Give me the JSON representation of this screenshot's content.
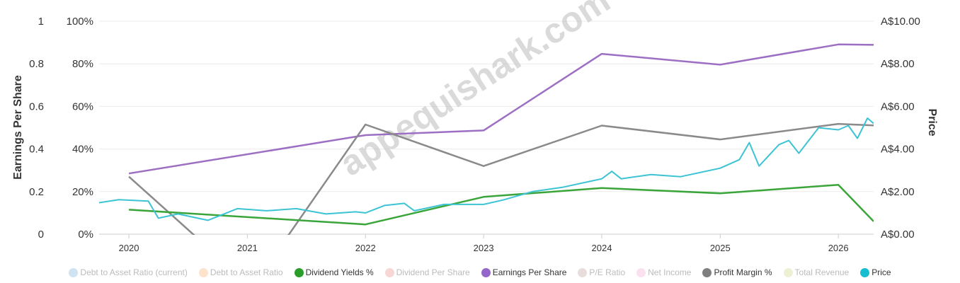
{
  "chart_data": {
    "type": "line",
    "watermark": "appequishark.com",
    "axes": {
      "left_eps": {
        "title": "Earnings Per Share",
        "ticks": [
          "0",
          "0.2",
          "0.4",
          "0.6",
          "0.8",
          "1"
        ],
        "range": [
          0,
          1
        ]
      },
      "left_pct": {
        "ticks": [
          "0%",
          "20%",
          "40%",
          "60%",
          "80%",
          "100%"
        ],
        "range": [
          0,
          100
        ]
      },
      "right_price": {
        "title": "Price",
        "ticks": [
          "A$0.00",
          "A$2.00",
          "A$4.00",
          "A$6.00",
          "A$8.00",
          "A$10.00"
        ],
        "range": [
          0,
          10
        ]
      },
      "x": {
        "ticks": [
          "2020",
          "2021",
          "2022",
          "2023",
          "2024",
          "2025",
          "2026"
        ],
        "range": [
          "2019-10-01",
          "2026-04-20"
        ]
      }
    },
    "series": [
      {
        "name": "Earnings Per Share",
        "color": "#9c6fc4",
        "axis": "left_eps",
        "points": [
          [
            "2020-01-01",
            0.285
          ],
          [
            "2022-01-01",
            0.465
          ],
          [
            "2023-01-01",
            0.487
          ],
          [
            "2024-01-01",
            0.847
          ],
          [
            "2025-01-01",
            0.796
          ],
          [
            "2026-01-01",
            0.891
          ],
          [
            "2026-04-20",
            0.889
          ]
        ]
      },
      {
        "name": "Profit Margin %",
        "color": "#8a8a8a",
        "axis": "left_pct",
        "points": [
          [
            "2020-01-01",
            27
          ],
          [
            "2020-08-01",
            -2
          ],
          [
            "2021-05-01",
            -2
          ],
          [
            "2022-01-01",
            51.5
          ],
          [
            "2023-01-01",
            32
          ],
          [
            "2024-01-01",
            51
          ],
          [
            "2025-01-01",
            44.5
          ],
          [
            "2026-01-01",
            51.8
          ],
          [
            "2026-04-20",
            51.1
          ]
        ]
      },
      {
        "name": "Dividend Yields %",
        "color": "#3aa53a",
        "axis": "left_pct",
        "points": [
          [
            "2020-01-01",
            11.5
          ],
          [
            "2022-01-01",
            4.6
          ],
          [
            "2023-01-01",
            17.5
          ],
          [
            "2024-01-01",
            21.7
          ],
          [
            "2025-01-01",
            19.2
          ],
          [
            "2026-01-01",
            23.2
          ],
          [
            "2026-04-20",
            6
          ]
        ]
      },
      {
        "name": "Price",
        "color": "#3cc3d4",
        "axis": "right_price",
        "points": [
          [
            "2019-10-01",
            1.48
          ],
          [
            "2019-12-01",
            1.62
          ],
          [
            "2020-03-01",
            1.55
          ],
          [
            "2020-04-01",
            0.75
          ],
          [
            "2020-06-01",
            0.95
          ],
          [
            "2020-09-01",
            0.65
          ],
          [
            "2020-12-01",
            1.2
          ],
          [
            "2021-03-01",
            1.1
          ],
          [
            "2021-06-01",
            1.2
          ],
          [
            "2021-09-01",
            0.95
          ],
          [
            "2021-12-01",
            1.05
          ],
          [
            "2022-01-01",
            1.0
          ],
          [
            "2022-03-01",
            1.35
          ],
          [
            "2022-05-01",
            1.45
          ],
          [
            "2022-06-01",
            1.1
          ],
          [
            "2022-09-01",
            1.4
          ],
          [
            "2023-01-01",
            1.4
          ],
          [
            "2023-03-01",
            1.6
          ],
          [
            "2023-06-01",
            2.0
          ],
          [
            "2023-09-01",
            2.2
          ],
          [
            "2024-01-01",
            2.6
          ],
          [
            "2024-02-01",
            2.95
          ],
          [
            "2024-03-01",
            2.6
          ],
          [
            "2024-06-01",
            2.8
          ],
          [
            "2024-09-01",
            2.7
          ],
          [
            "2025-01-01",
            3.1
          ],
          [
            "2025-03-01",
            3.5
          ],
          [
            "2025-04-01",
            4.3
          ],
          [
            "2025-05-01",
            3.2
          ],
          [
            "2025-07-01",
            4.2
          ],
          [
            "2025-08-01",
            4.4
          ],
          [
            "2025-09-01",
            3.8
          ],
          [
            "2025-11-01",
            5.0
          ],
          [
            "2026-01-01",
            4.9
          ],
          [
            "2026-02-01",
            5.1
          ],
          [
            "2026-03-01",
            4.5
          ],
          [
            "2026-04-01",
            5.45
          ],
          [
            "2026-04-20",
            5.2
          ]
        ]
      }
    ],
    "legend": [
      {
        "label": "Debt to Asset Ratio (current)",
        "color": "#cfe3f2",
        "active": false
      },
      {
        "label": "Debt to Asset Ratio",
        "color": "#fde3cc",
        "active": false
      },
      {
        "label": "Dividend Yields %",
        "color": "#2a9d2a",
        "active": true
      },
      {
        "label": "Dividend Per Share",
        "color": "#f8d6d6",
        "active": false
      },
      {
        "label": "Earnings Per Share",
        "color": "#9466c9",
        "active": true
      },
      {
        "label": "P/E Ratio",
        "color": "#e7dedc",
        "active": false
      },
      {
        "label": "Net Income",
        "color": "#fbe0ef",
        "active": false
      },
      {
        "label": "Profit Margin %",
        "color": "#7f7f7f",
        "active": true
      },
      {
        "label": "Total Revenue",
        "color": "#eef0d4",
        "active": false
      },
      {
        "label": "Price",
        "color": "#17becf",
        "active": true
      }
    ]
  }
}
